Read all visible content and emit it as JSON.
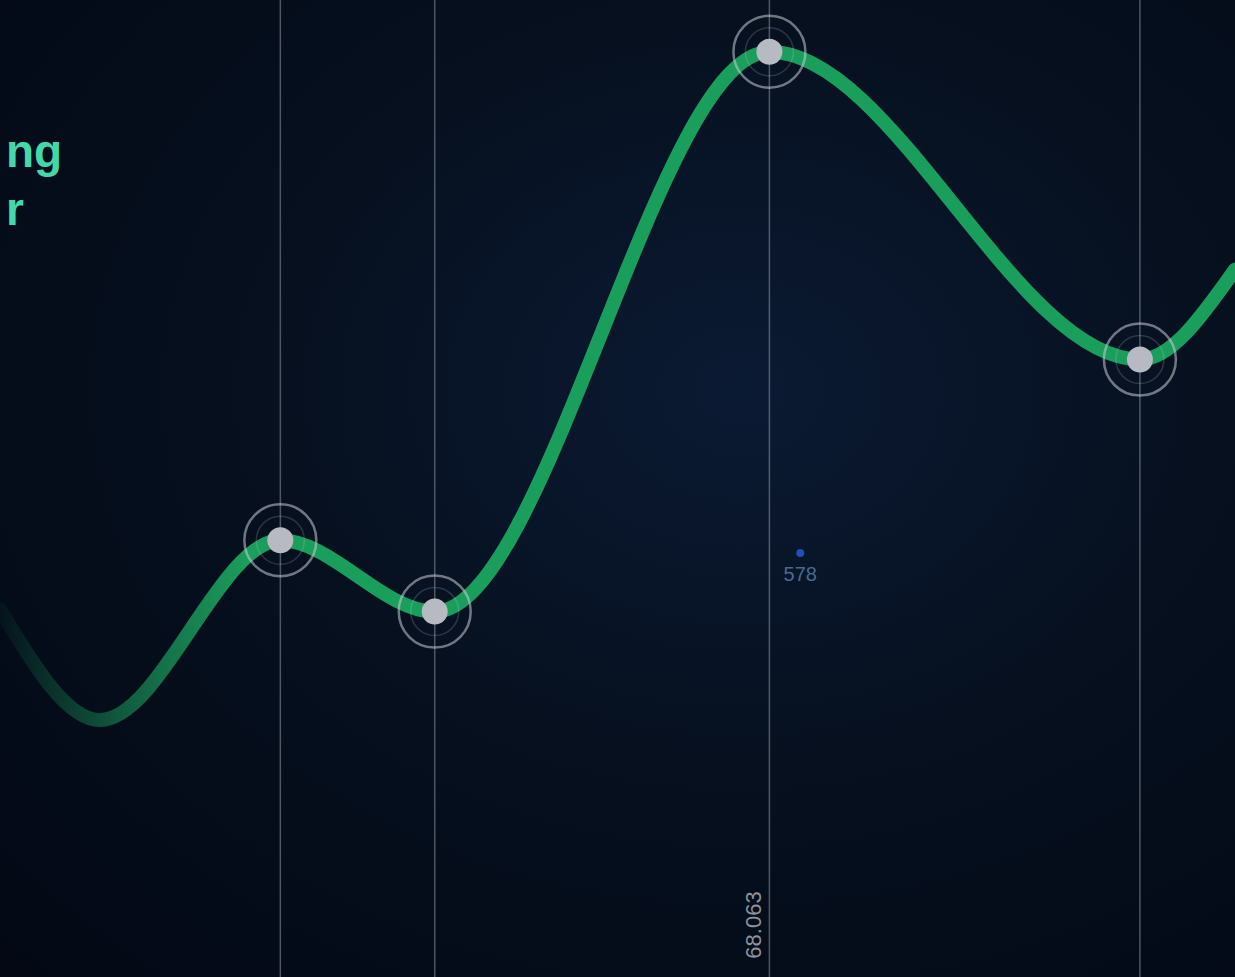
{
  "chart_data": {
    "type": "line",
    "title": "ng",
    "subtitle": "r",
    "xlim": [
      0,
      100
    ],
    "ylim": [
      0,
      100
    ],
    "grid": false,
    "tick_labels": false,
    "series": [
      {
        "type": "line",
        "color": "#1a9e5c",
        "x": [
          0,
          8.1,
          22.7,
          35.2,
          62.3,
          92.3,
          100
        ],
        "values": [
          37.6,
          26.3,
          44.7,
          37.4,
          94.7,
          63.2,
          72.4
        ]
      },
      {
        "type": "scatter",
        "color": "#b7bac2",
        "marker": "circle",
        "x": [
          22.7,
          35.2,
          62.3,
          92.3
        ],
        "values": [
          44.7,
          37.4,
          94.7,
          63.2
        ]
      }
    ],
    "annotations": [
      {
        "text": "68.063",
        "x": 62.3
      },
      {
        "text": "578",
        "x": 64.8,
        "y": 43.4
      }
    ]
  }
}
